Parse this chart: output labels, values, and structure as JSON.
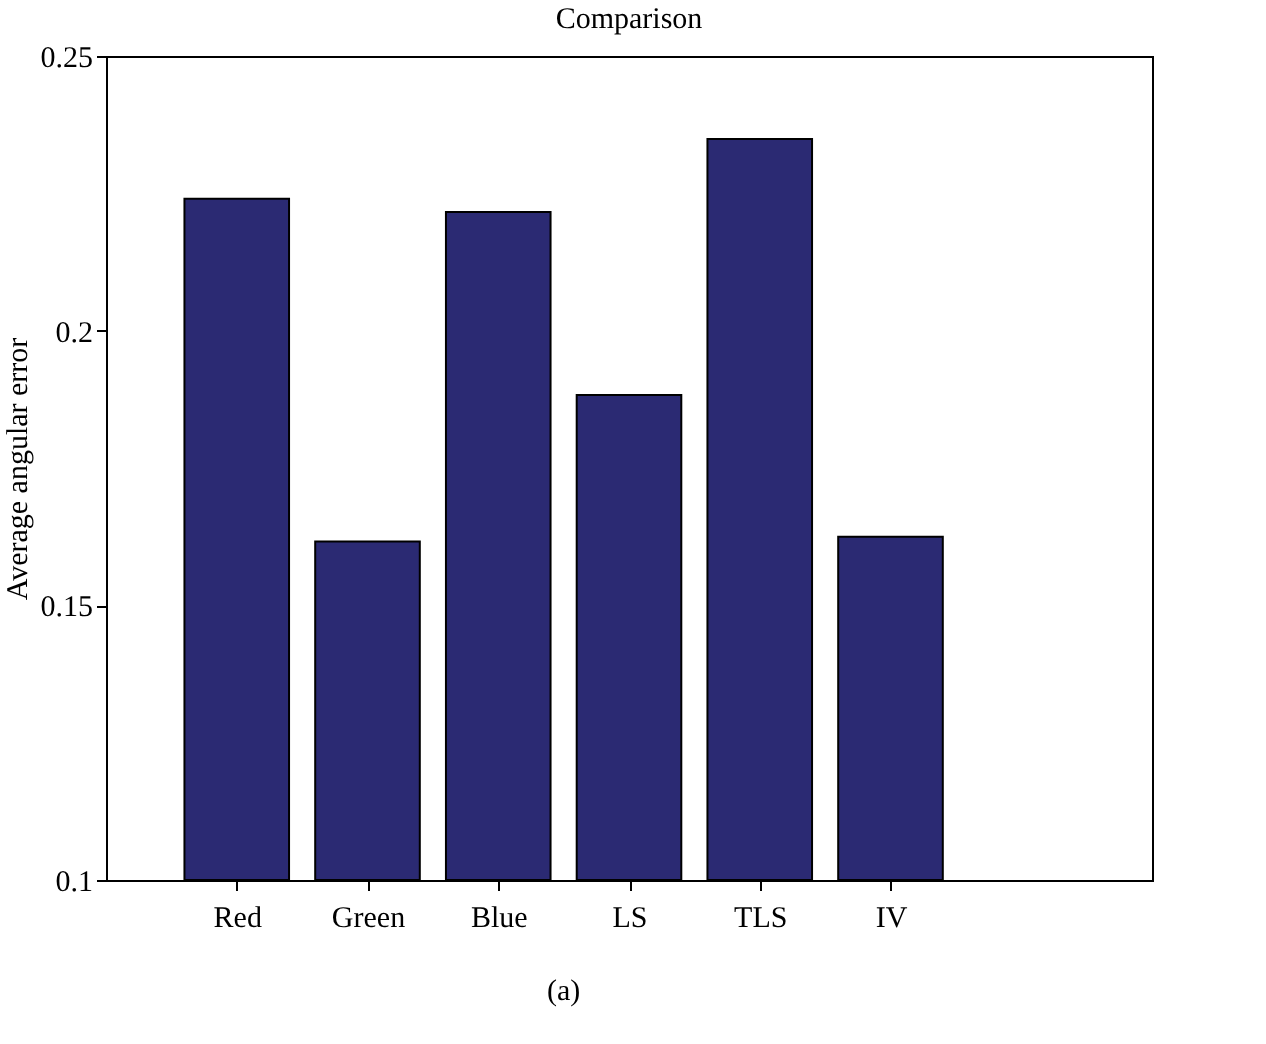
{
  "chart_data": {
    "type": "bar",
    "title": "Comparison",
    "ylabel": "Average angular error",
    "categories": [
      "Red",
      "Green",
      "Blue",
      "LS",
      "TLS",
      "IV"
    ],
    "values": [
      0.224,
      0.1616,
      0.2216,
      0.1883,
      0.2349,
      0.1625
    ],
    "color": "#2b2a73",
    "ylim": [
      0.1,
      0.25
    ],
    "yticks": [
      0.1,
      0.15,
      0.2,
      0.25
    ],
    "grid": false,
    "annotations": [
      "(a)"
    ]
  }
}
